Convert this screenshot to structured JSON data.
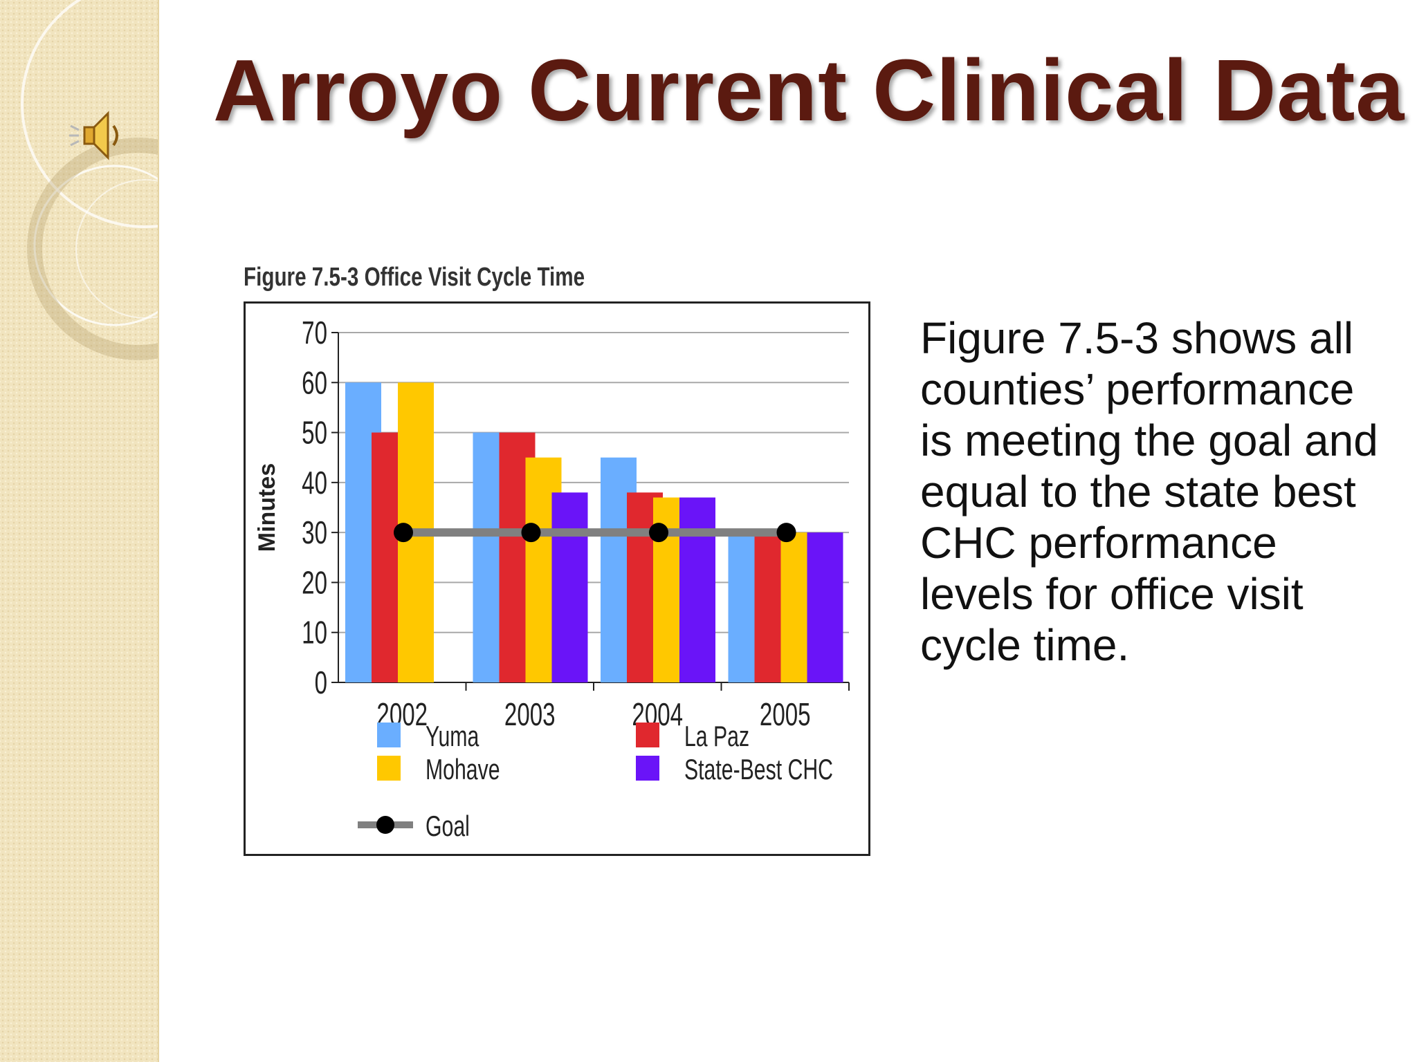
{
  "slide": {
    "title": "Arroyo Current Clinical Data",
    "body_text": "Figure 7.5-3 shows all counties’ performance is meeting the goal and equal to the state best CHC performance levels for office visit cycle time."
  },
  "icons": {
    "audio": "speaker-icon"
  },
  "colors": {
    "title": "#5b1a10",
    "sidebar": "#f1e4bf",
    "yuma": "#6aaeff",
    "la_paz": "#e0282e",
    "mohave": "#ffc800",
    "state_best": "#6a14f8",
    "goal_line": "#808080",
    "goal_marker": "#000000"
  },
  "chart_data": {
    "type": "bar",
    "title": "Figure 7.5-3  Office Visit Cycle Time",
    "ylabel": "Minutes",
    "xlabel": "",
    "ylim": [
      0,
      70
    ],
    "yticks": [
      "0",
      "10",
      "20",
      "30",
      "40",
      "50",
      "60",
      "70"
    ],
    "grid": true,
    "categories": [
      "2002",
      "2003",
      "2004",
      "2005"
    ],
    "series": [
      {
        "name": "Yuma",
        "values": [
          60,
          50,
          45,
          30
        ]
      },
      {
        "name": "La Paz",
        "values": [
          50,
          50,
          38,
          30
        ]
      },
      {
        "name": "Mohave",
        "values": [
          60,
          45,
          37,
          30
        ]
      },
      {
        "name": "State-Best CHC",
        "values": [
          null,
          38,
          37,
          30
        ]
      }
    ],
    "goal": {
      "name": "Goal",
      "values": [
        30,
        30,
        30,
        30
      ]
    },
    "legend_position": "bottom"
  }
}
